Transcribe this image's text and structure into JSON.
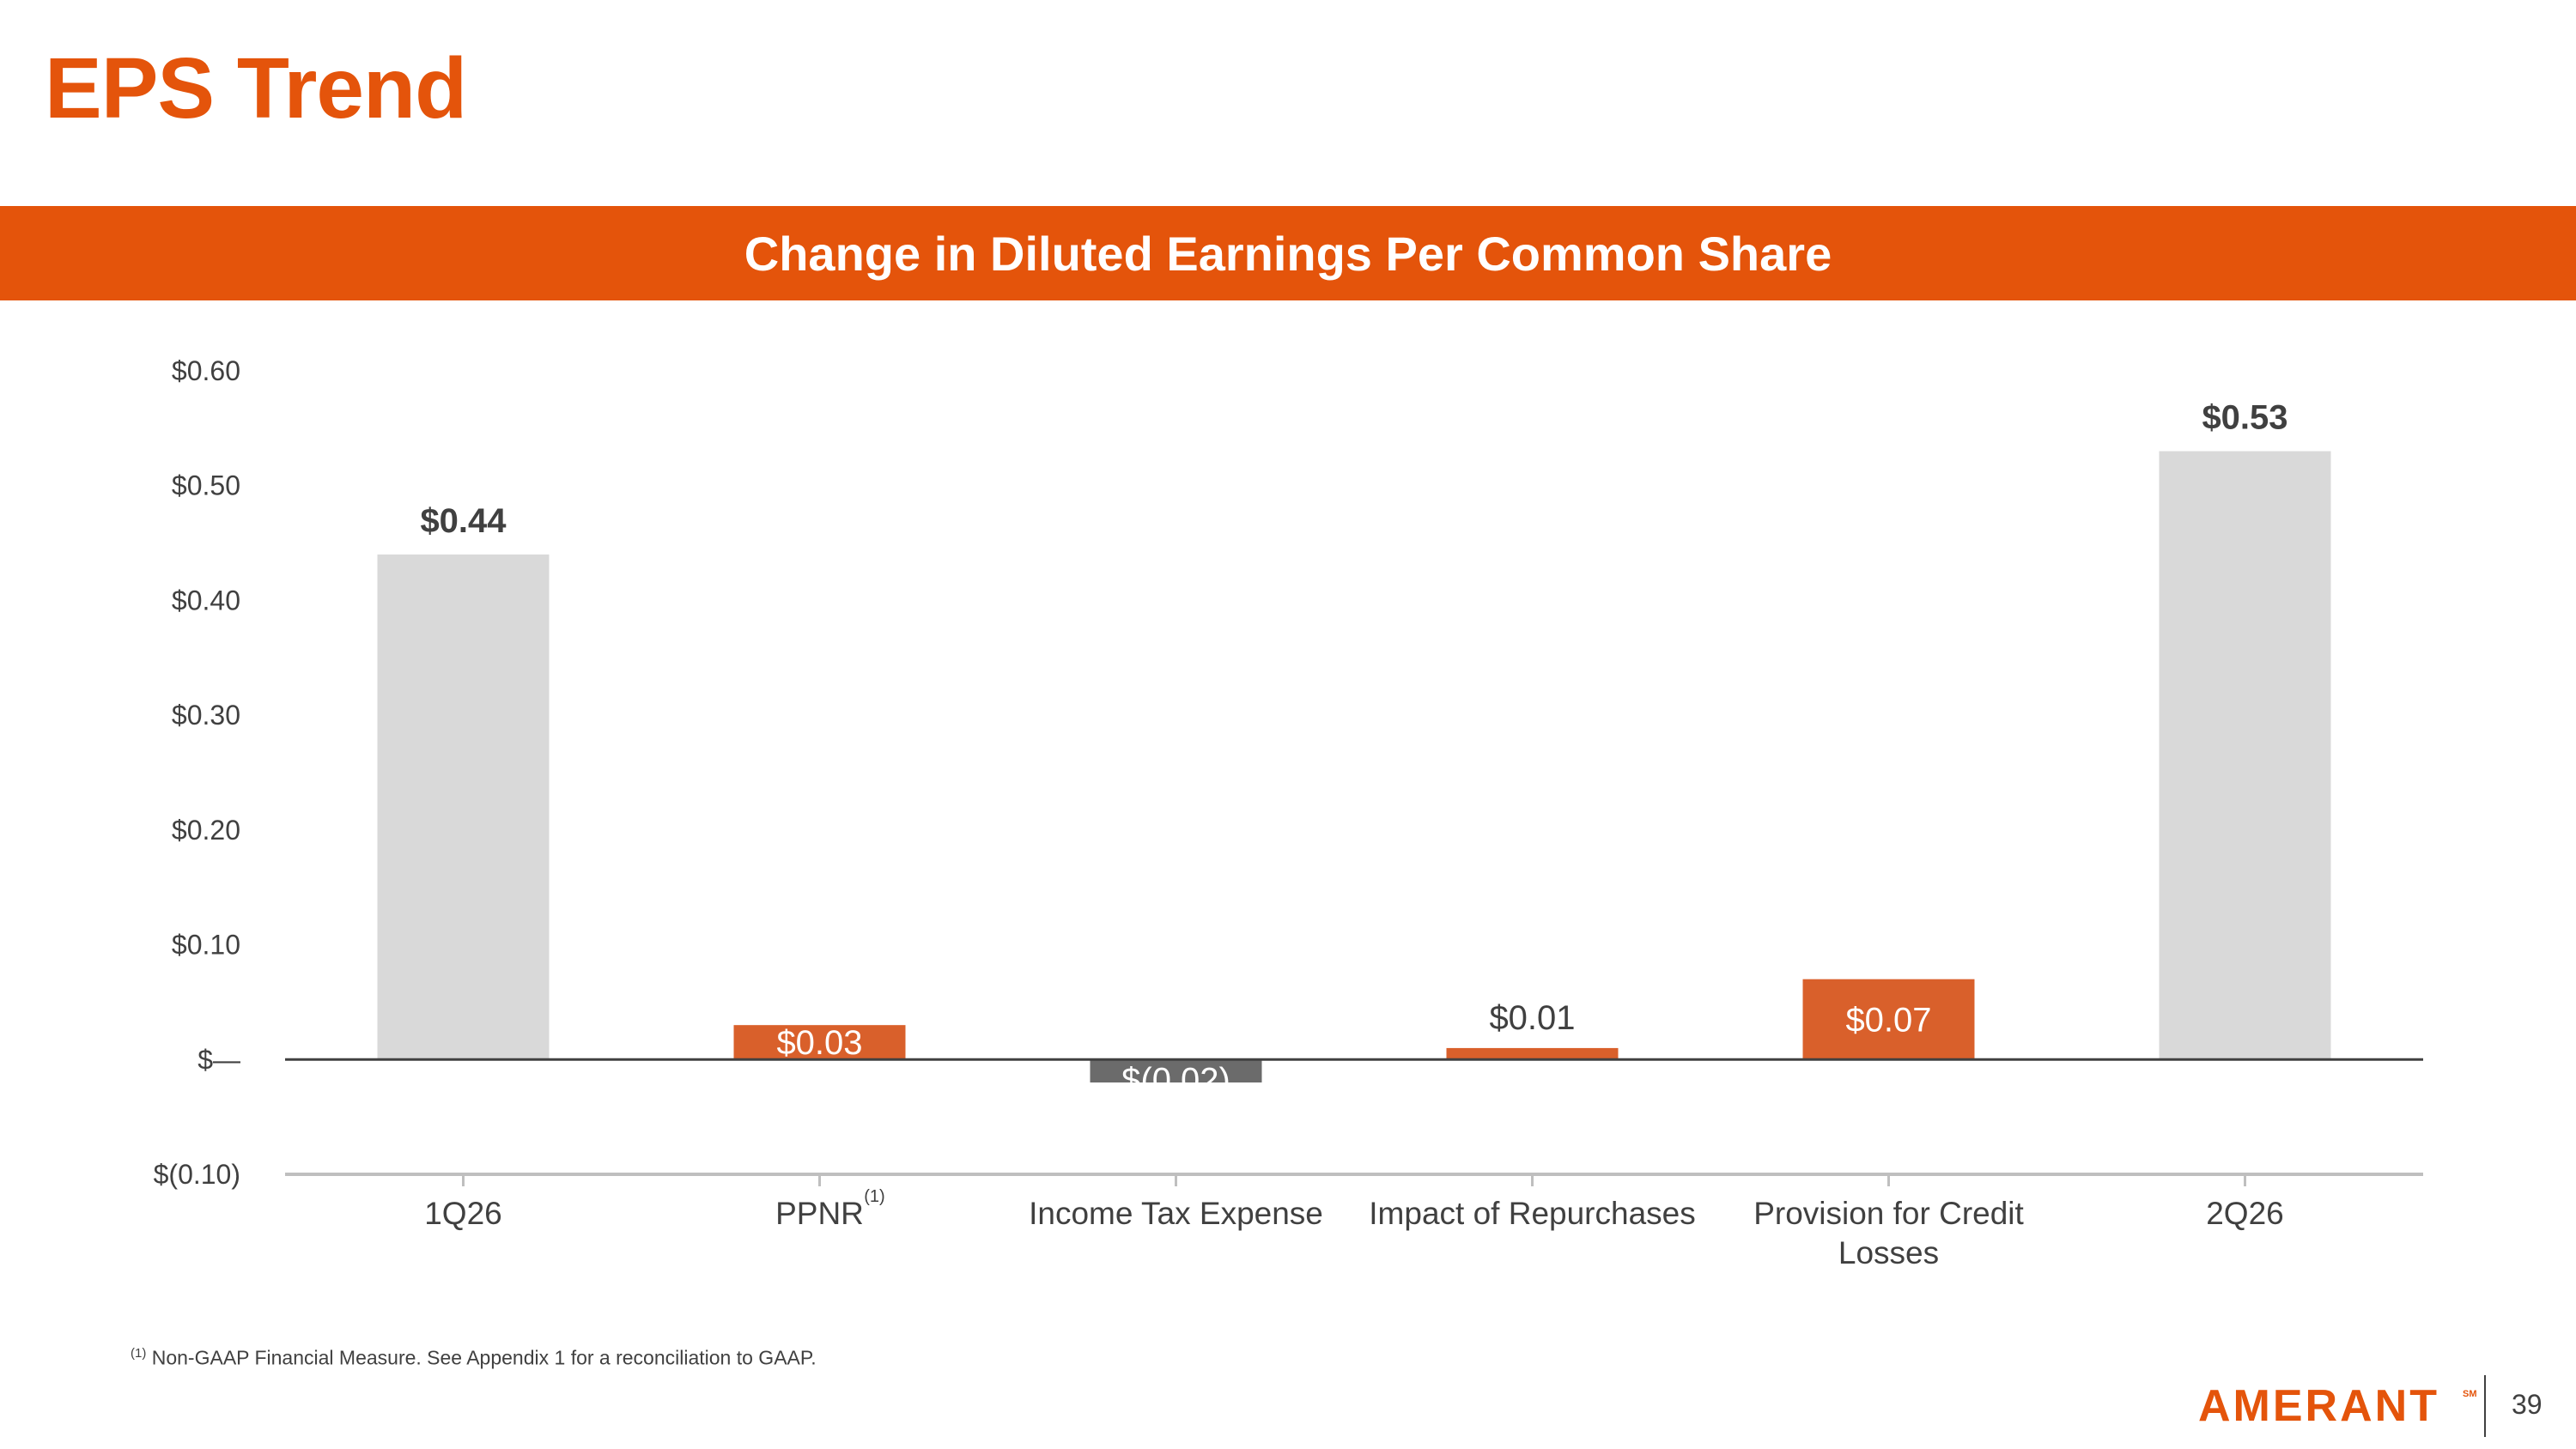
{
  "slide": {
    "title": "EPS Trend",
    "page_number": "39"
  },
  "banner": {
    "text": "Change in Diluted Earnings Per Common Share"
  },
  "footnote": {
    "marker": "(1)",
    "text": " Non-GAAP Financial Measure. See Appendix 1 for a reconciliation to GAAP."
  },
  "logo": {
    "text": "AMERANT",
    "mark": "SM"
  },
  "colors": {
    "accent": "#E4540B",
    "increase": "#D9602B",
    "decrease": "#6B6B6B",
    "total": "#D9D9D9",
    "axis": "#404040",
    "label_dark": "#404040"
  },
  "chart_data": {
    "type": "bar",
    "subtype": "waterfall",
    "title": "Change in Diluted Earnings Per Common Share",
    "categories": [
      "1Q26",
      "PPNR",
      "Income Tax Expense",
      "Impact of Repurchases",
      "Provision for Credit Losses",
      "2Q26"
    ],
    "category_superscripts": [
      "",
      "(1)",
      "",
      "",
      "",
      ""
    ],
    "values": [
      0.44,
      0.03,
      -0.02,
      0.01,
      0.07,
      0.53
    ],
    "bar_kinds": [
      "total",
      "increase",
      "decrease",
      "increase",
      "increase",
      "total"
    ],
    "data_labels": [
      "$0.44",
      "$0.03",
      "$(0.02)",
      "$0.01",
      "$0.07",
      "$0.53"
    ],
    "ylim": [
      -0.1,
      0.6
    ],
    "y_ticks": [
      0.6,
      0.5,
      0.4,
      0.3,
      0.2,
      0.1,
      0.0,
      -0.1
    ],
    "y_tick_labels": [
      "$0.60",
      "$0.50",
      "$0.40",
      "$0.30",
      "$0.20",
      "$0.10",
      "$—",
      "$(0.10)"
    ],
    "grid": false,
    "legend": "none",
    "xlabel": "",
    "ylabel": ""
  }
}
